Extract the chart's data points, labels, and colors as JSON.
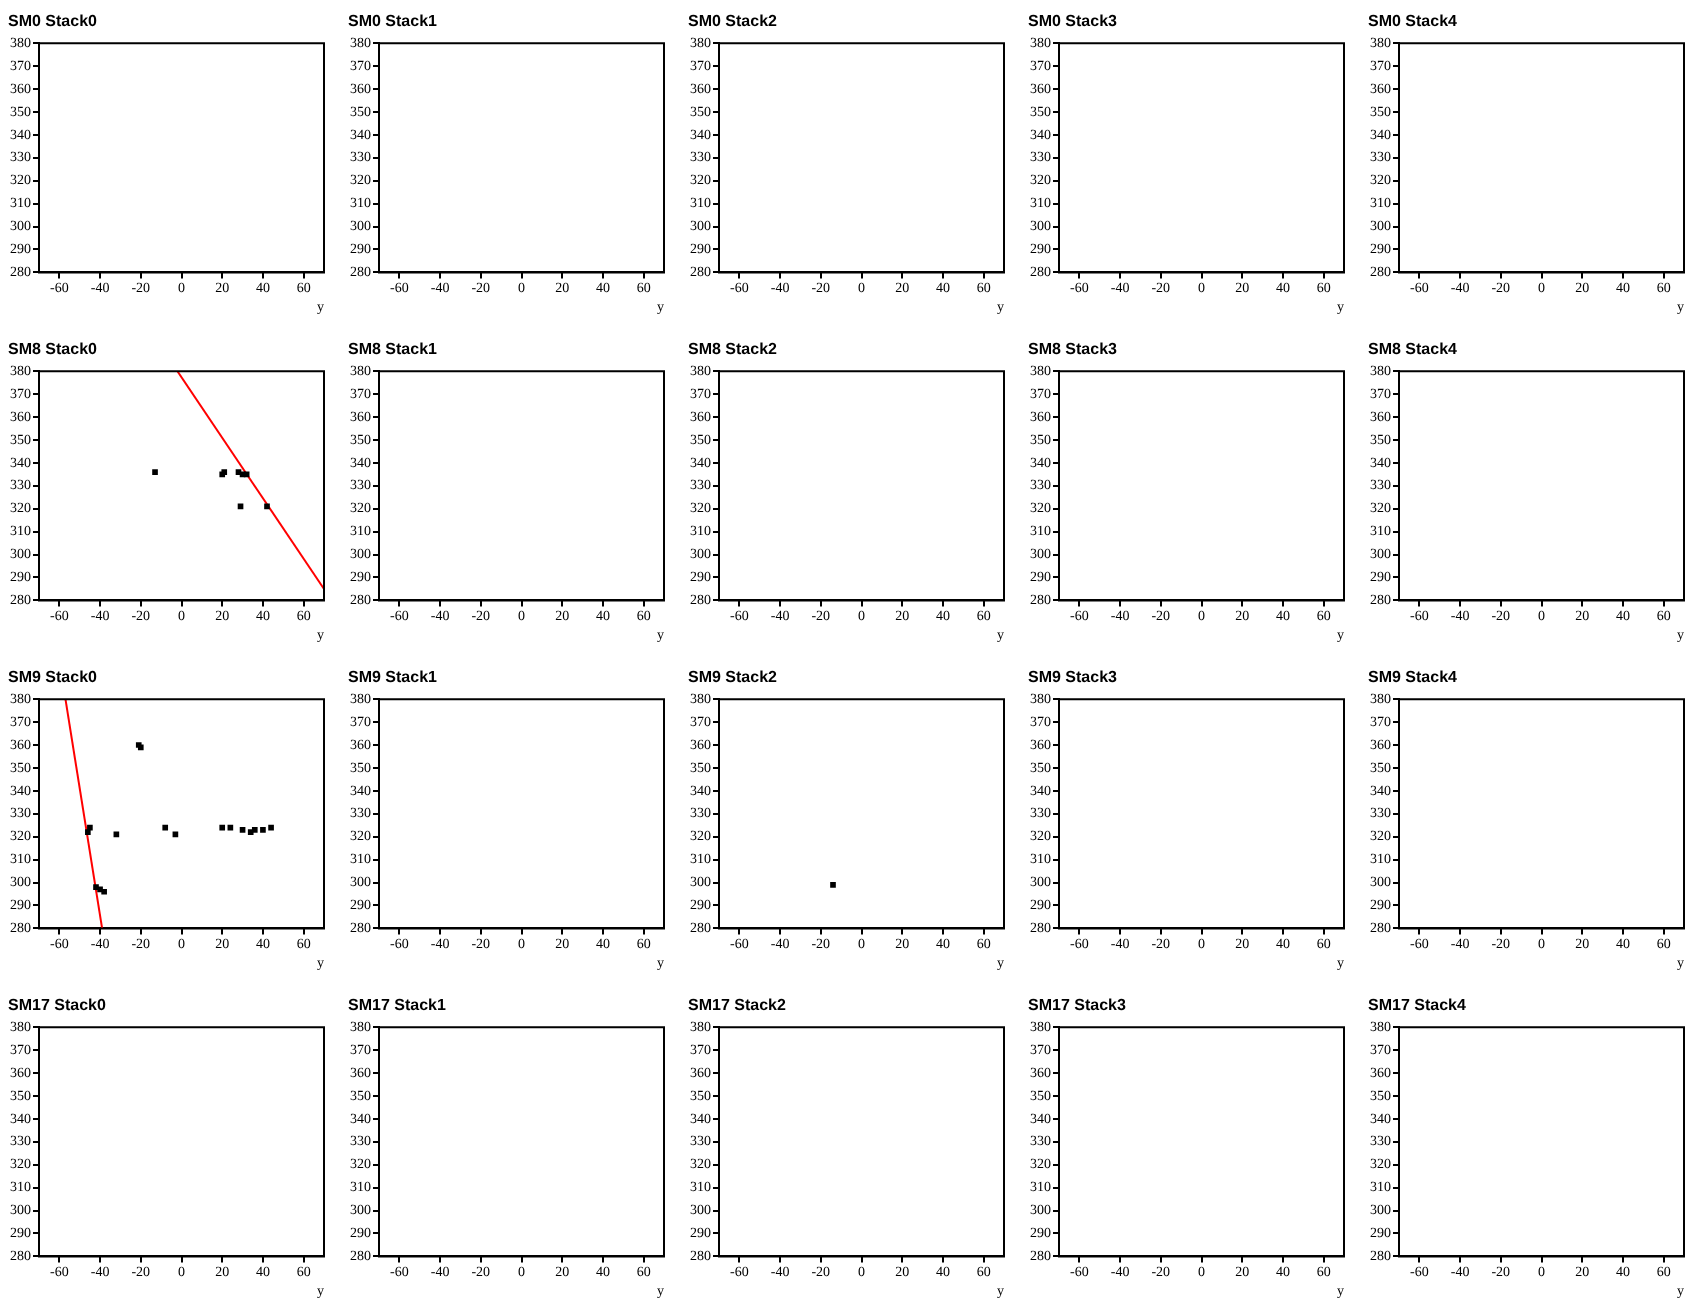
{
  "chart_data": [
    {
      "type": "scatter",
      "title": "SM0 Stack0",
      "xlabel": "y",
      "xlim": [
        -70,
        70
      ],
      "xticks": [
        -60,
        -40,
        -20,
        0,
        20,
        40,
        60
      ],
      "ylim": [
        280,
        380
      ],
      "yticks": [
        280,
        290,
        300,
        310,
        320,
        330,
        340,
        350,
        360,
        370,
        380
      ],
      "grid": false,
      "legend": false
    },
    {
      "type": "scatter",
      "title": "SM0 Stack1",
      "xlabel": "y",
      "xlim": [
        -70,
        70
      ],
      "xticks": [
        -60,
        -40,
        -20,
        0,
        20,
        40,
        60
      ],
      "ylim": [
        280,
        380
      ],
      "yticks": [
        280,
        290,
        300,
        310,
        320,
        330,
        340,
        350,
        360,
        370,
        380
      ],
      "grid": false,
      "legend": false
    },
    {
      "type": "scatter",
      "title": "SM0 Stack2",
      "xlabel": "y",
      "xlim": [
        -70,
        70
      ],
      "xticks": [
        -60,
        -40,
        -20,
        0,
        20,
        40,
        60
      ],
      "ylim": [
        280,
        380
      ],
      "yticks": [
        280,
        290,
        300,
        310,
        320,
        330,
        340,
        350,
        360,
        370,
        380
      ],
      "grid": false,
      "legend": false
    },
    {
      "type": "scatter",
      "title": "SM0 Stack3",
      "xlabel": "y",
      "xlim": [
        -70,
        70
      ],
      "xticks": [
        -60,
        -40,
        -20,
        0,
        20,
        40,
        60
      ],
      "ylim": [
        280,
        380
      ],
      "yticks": [
        280,
        290,
        300,
        310,
        320,
        330,
        340,
        350,
        360,
        370,
        380
      ],
      "grid": false,
      "legend": false
    },
    {
      "type": "scatter",
      "title": "SM0 Stack4",
      "xlabel": "y",
      "xlim": [
        -70,
        70
      ],
      "xticks": [
        -60,
        -40,
        -20,
        0,
        20,
        40,
        60
      ],
      "ylim": [
        280,
        380
      ],
      "yticks": [
        280,
        290,
        300,
        310,
        320,
        330,
        340,
        350,
        360,
        370,
        380
      ],
      "grid": false,
      "legend": false
    },
    {
      "type": "scatter",
      "title": "SM8 Stack0",
      "xlabel": "y",
      "xlim": [
        -70,
        70
      ],
      "xticks": [
        -60,
        -40,
        -20,
        0,
        20,
        40,
        60
      ],
      "ylim": [
        280,
        380
      ],
      "yticks": [
        280,
        290,
        300,
        310,
        320,
        330,
        340,
        350,
        360,
        370,
        380
      ],
      "grid": false,
      "legend": false,
      "series": [
        {
          "color": "#000000",
          "marker": "square",
          "x": [
            -13,
            20,
            21,
            28,
            30,
            32,
            29,
            42
          ],
          "values": [
            336,
            335,
            336,
            336,
            335,
            335,
            321,
            321
          ]
        },
        {
          "type": "line",
          "color": "#ff0000",
          "marker": "none",
          "x": [
            -2,
            70
          ],
          "values": [
            380,
            285
          ]
        }
      ]
    },
    {
      "type": "scatter",
      "title": "SM8 Stack1",
      "xlabel": "y",
      "xlim": [
        -70,
        70
      ],
      "xticks": [
        -60,
        -40,
        -20,
        0,
        20,
        40,
        60
      ],
      "ylim": [
        280,
        380
      ],
      "yticks": [
        280,
        290,
        300,
        310,
        320,
        330,
        340,
        350,
        360,
        370,
        380
      ],
      "grid": false,
      "legend": false
    },
    {
      "type": "scatter",
      "title": "SM8 Stack2",
      "xlabel": "y",
      "xlim": [
        -70,
        70
      ],
      "xticks": [
        -60,
        -40,
        -20,
        0,
        20,
        40,
        60
      ],
      "ylim": [
        280,
        380
      ],
      "yticks": [
        280,
        290,
        300,
        310,
        320,
        330,
        340,
        350,
        360,
        370,
        380
      ],
      "grid": false,
      "legend": false
    },
    {
      "type": "scatter",
      "title": "SM8 Stack3",
      "xlabel": "y",
      "xlim": [
        -70,
        70
      ],
      "xticks": [
        -60,
        -40,
        -20,
        0,
        20,
        40,
        60
      ],
      "ylim": [
        280,
        380
      ],
      "yticks": [
        280,
        290,
        300,
        310,
        320,
        330,
        340,
        350,
        360,
        370,
        380
      ],
      "grid": false,
      "legend": false
    },
    {
      "type": "scatter",
      "title": "SM8 Stack4",
      "xlabel": "y",
      "xlim": [
        -70,
        70
      ],
      "xticks": [
        -60,
        -40,
        -20,
        0,
        20,
        40,
        60
      ],
      "ylim": [
        280,
        380
      ],
      "yticks": [
        280,
        290,
        300,
        310,
        320,
        330,
        340,
        350,
        360,
        370,
        380
      ],
      "grid": false,
      "legend": false
    },
    {
      "type": "scatter",
      "title": "SM9 Stack0",
      "xlabel": "y",
      "xlim": [
        -70,
        70
      ],
      "xticks": [
        -60,
        -40,
        -20,
        0,
        20,
        40,
        60
      ],
      "ylim": [
        280,
        380
      ],
      "yticks": [
        280,
        290,
        300,
        310,
        320,
        330,
        340,
        350,
        360,
        370,
        380
      ],
      "grid": false,
      "legend": false,
      "series": [
        {
          "color": "#000000",
          "marker": "square",
          "x": [
            -21,
            -20,
            -46,
            -45,
            -32,
            -8,
            -3,
            20,
            24,
            30,
            34,
            36,
            40,
            44,
            -42,
            -40,
            -38
          ],
          "values": [
            360,
            359,
            322,
            324,
            321,
            324,
            321,
            324,
            324,
            323,
            322,
            323,
            323,
            324,
            298,
            297,
            296
          ]
        },
        {
          "type": "line",
          "color": "#ff0000",
          "marker": "none",
          "x": [
            -57,
            -39
          ],
          "values": [
            380,
            280
          ]
        }
      ]
    },
    {
      "type": "scatter",
      "title": "SM9 Stack1",
      "xlabel": "y",
      "xlim": [
        -70,
        70
      ],
      "xticks": [
        -60,
        -40,
        -20,
        0,
        20,
        40,
        60
      ],
      "ylim": [
        280,
        380
      ],
      "yticks": [
        280,
        290,
        300,
        310,
        320,
        330,
        340,
        350,
        360,
        370,
        380
      ],
      "grid": false,
      "legend": false
    },
    {
      "type": "scatter",
      "title": "SM9 Stack2",
      "xlabel": "y",
      "xlim": [
        -70,
        70
      ],
      "xticks": [
        -60,
        -40,
        -20,
        0,
        20,
        40,
        60
      ],
      "ylim": [
        280,
        380
      ],
      "yticks": [
        280,
        290,
        300,
        310,
        320,
        330,
        340,
        350,
        360,
        370,
        380
      ],
      "grid": false,
      "legend": false,
      "series": [
        {
          "color": "#000000",
          "marker": "square",
          "x": [
            -14
          ],
          "values": [
            299
          ]
        }
      ]
    },
    {
      "type": "scatter",
      "title": "SM9 Stack3",
      "xlabel": "y",
      "xlim": [
        -70,
        70
      ],
      "xticks": [
        -60,
        -40,
        -20,
        0,
        20,
        40,
        60
      ],
      "ylim": [
        280,
        380
      ],
      "yticks": [
        280,
        290,
        300,
        310,
        320,
        330,
        340,
        350,
        360,
        370,
        380
      ],
      "grid": false,
      "legend": false
    },
    {
      "type": "scatter",
      "title": "SM9 Stack4",
      "xlabel": "y",
      "xlim": [
        -70,
        70
      ],
      "xticks": [
        -60,
        -40,
        -20,
        0,
        20,
        40,
        60
      ],
      "ylim": [
        280,
        380
      ],
      "yticks": [
        280,
        290,
        300,
        310,
        320,
        330,
        340,
        350,
        360,
        370,
        380
      ],
      "grid": false,
      "legend": false
    },
    {
      "type": "scatter",
      "title": "SM17 Stack0",
      "xlabel": "y",
      "xlim": [
        -70,
        70
      ],
      "xticks": [
        -60,
        -40,
        -20,
        0,
        20,
        40,
        60
      ],
      "ylim": [
        280,
        380
      ],
      "yticks": [
        280,
        290,
        300,
        310,
        320,
        330,
        340,
        350,
        360,
        370,
        380
      ],
      "grid": false,
      "legend": false
    },
    {
      "type": "scatter",
      "title": "SM17 Stack1",
      "xlabel": "y",
      "xlim": [
        -70,
        70
      ],
      "xticks": [
        -60,
        -40,
        -20,
        0,
        20,
        40,
        60
      ],
      "ylim": [
        280,
        380
      ],
      "yticks": [
        280,
        290,
        300,
        310,
        320,
        330,
        340,
        350,
        360,
        370,
        380
      ],
      "grid": false,
      "legend": false
    },
    {
      "type": "scatter",
      "title": "SM17 Stack2",
      "xlabel": "y",
      "xlim": [
        -70,
        70
      ],
      "xticks": [
        -60,
        -40,
        -20,
        0,
        20,
        40,
        60
      ],
      "ylim": [
        280,
        380
      ],
      "yticks": [
        280,
        290,
        300,
        310,
        320,
        330,
        340,
        350,
        360,
        370,
        380
      ],
      "grid": false,
      "legend": false
    },
    {
      "type": "scatter",
      "title": "SM17 Stack3",
      "xlabel": "y",
      "xlim": [
        -70,
        70
      ],
      "xticks": [
        -60,
        -40,
        -20,
        0,
        20,
        40,
        60
      ],
      "ylim": [
        280,
        380
      ],
      "yticks": [
        280,
        290,
        300,
        310,
        320,
        330,
        340,
        350,
        360,
        370,
        380
      ],
      "grid": false,
      "legend": false
    },
    {
      "type": "scatter",
      "title": "SM17 Stack4",
      "xlabel": "y",
      "xlim": [
        -70,
        70
      ],
      "xticks": [
        -60,
        -40,
        -20,
        0,
        20,
        40,
        60
      ],
      "ylim": [
        280,
        380
      ],
      "yticks": [
        280,
        290,
        300,
        310,
        320,
        330,
        340,
        350,
        360,
        370,
        380
      ],
      "grid": false,
      "legend": false
    }
  ]
}
